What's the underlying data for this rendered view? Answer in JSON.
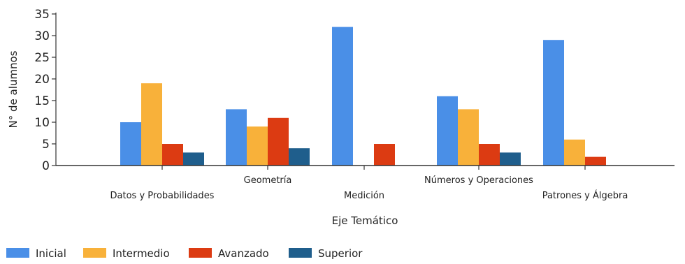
{
  "chart_data": {
    "type": "bar",
    "xlabel": "Eje Temático",
    "ylabel": "N° de alumnos",
    "ylim": [
      0,
      35
    ],
    "yticks": [
      "0",
      "5",
      "10",
      "15",
      "20",
      "25",
      "30",
      "35"
    ],
    "grid": false,
    "legend_position": "bottom-left",
    "categories": [
      "Datos y Probabilidades",
      "Geometría",
      "Medición",
      "Números y Operaciones",
      "Patrones y Álgebra"
    ],
    "series": [
      {
        "name": "Inicial",
        "color": "#4a8fe7",
        "values": [
          10,
          13,
          32,
          16,
          29
        ]
      },
      {
        "name": "Intermedio",
        "color": "#f8b13a",
        "values": [
          19,
          9,
          0,
          13,
          6
        ]
      },
      {
        "name": "Avanzado",
        "color": "#dc3b12",
        "values": [
          5,
          11,
          5,
          5,
          2
        ]
      },
      {
        "name": "Superior",
        "color": "#1f5e8c",
        "values": [
          3,
          4,
          0,
          3,
          0
        ]
      }
    ]
  }
}
